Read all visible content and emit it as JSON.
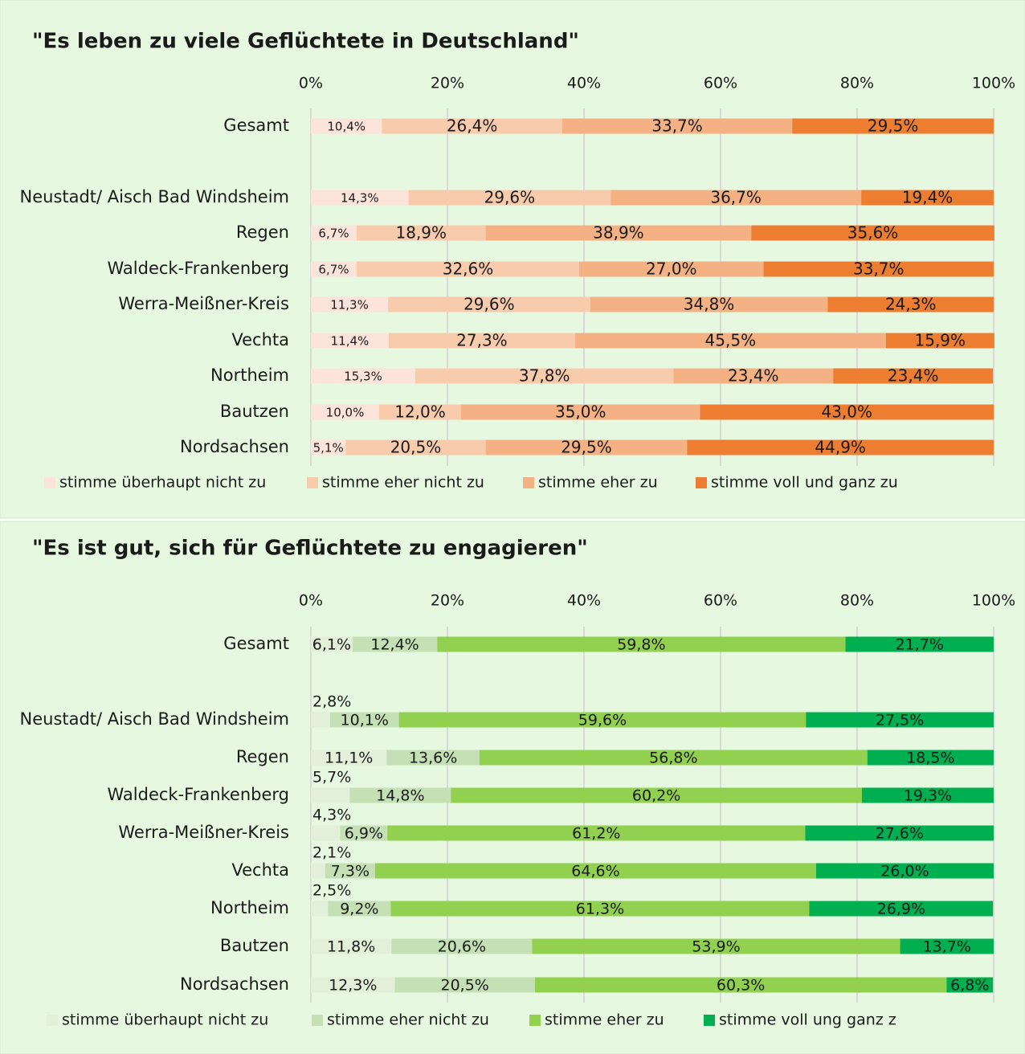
{
  "chart_data": [
    {
      "type": "stacked_bar_horizontal",
      "title": "\"Es leben zu viele Geflüchtete in Deutschland\"",
      "categories": [
        "Gesamt",
        "Neustadt/ Aisch Bad Windsheim",
        "Regen",
        "Waldeck-Frankenberg",
        "Werra-Meißner-Kreis",
        "Vechta",
        "Northeim",
        "Bautzen",
        "Nordsachsen"
      ],
      "xlim": [
        0,
        100
      ],
      "xticks": [
        {
          "value": 0,
          "label": "0%"
        },
        {
          "value": 20,
          "label": "20%"
        },
        {
          "value": 40,
          "label": "40%"
        },
        {
          "value": 60,
          "label": "60%"
        },
        {
          "value": 80,
          "label": "80%"
        },
        {
          "value": 100,
          "label": "100%"
        }
      ],
      "grid": true,
      "legend": "bottom",
      "series": [
        {
          "name": "stimme überhaupt nicht zu",
          "color": "#fce4da",
          "values": [
            10.4,
            14.3,
            6.7,
            6.7,
            11.3,
            11.4,
            15.3,
            10.0,
            5.1
          ],
          "value_labels": [
            "10,4%",
            "14,3%",
            "6,7%",
            "6,7%",
            "11,3%",
            "11,4%",
            "15,3%",
            "10,0%",
            "5,1%"
          ]
        },
        {
          "name": "stimme eher nicht zu",
          "color": "#f8cbad",
          "values": [
            26.4,
            29.6,
            18.9,
            32.6,
            29.6,
            27.3,
            37.8,
            12.0,
            20.5
          ],
          "value_labels": [
            "26,4%",
            "29,6%",
            "18,9%",
            "32,6%",
            "29,6%",
            "27,3%",
            "37,8%",
            "12,0%",
            "20,5%"
          ]
        },
        {
          "name": "stimme eher zu",
          "color": "#f4b183",
          "values": [
            33.7,
            36.7,
            38.9,
            27.0,
            34.8,
            45.5,
            23.4,
            35.0,
            29.5
          ],
          "value_labels": [
            "33,7%",
            "36,7%",
            "38,9%",
            "27,0%",
            "34,8%",
            "45,5%",
            "23,4%",
            "35,0%",
            "29,5%"
          ]
        },
        {
          "name": "stimme voll und ganz zu",
          "color": "#ed7d31",
          "values": [
            29.5,
            19.4,
            35.6,
            33.7,
            24.3,
            15.9,
            23.4,
            43.0,
            44.9
          ],
          "value_labels": [
            "29,5%",
            "19,4%",
            "35,6%",
            "33,7%",
            "24,3%",
            "15,9%",
            "23,4%",
            "43,0%",
            "44,9%"
          ]
        }
      ]
    },
    {
      "type": "stacked_bar_horizontal",
      "title": "\"Es ist gut, sich für Geflüchtete zu engagieren\"",
      "categories": [
        "Gesamt",
        "Neustadt/ Aisch Bad Windsheim",
        "Regen",
        "Waldeck-Frankenberg",
        "Werra-Meißner-Kreis",
        "Vechta",
        "Northeim",
        "Bautzen",
        "Nordsachsen"
      ],
      "xlim": [
        0,
        100
      ],
      "xticks": [
        {
          "value": 0,
          "label": "0%"
        },
        {
          "value": 20,
          "label": "20%"
        },
        {
          "value": 40,
          "label": "40%"
        },
        {
          "value": 60,
          "label": "60%"
        },
        {
          "value": 80,
          "label": "80%"
        },
        {
          "value": 100,
          "label": "100%"
        }
      ],
      "grid": true,
      "legend": "bottom",
      "series": [
        {
          "name": "stimme überhaupt nicht zu",
          "color": "#e2efd9",
          "values": [
            6.1,
            2.8,
            11.1,
            5.7,
            4.3,
            2.1,
            2.5,
            11.8,
            12.3
          ],
          "value_labels": [
            "6,1%",
            "2,8%",
            "11,1%",
            "5,7%",
            "4,3%",
            "2,1%",
            "2,5%",
            "11,8%",
            "12,3%"
          ]
        },
        {
          "name": "stimme eher nicht zu",
          "color": "#c5e0b4",
          "values": [
            12.4,
            10.1,
            13.6,
            14.8,
            6.9,
            7.3,
            9.2,
            20.6,
            20.5
          ],
          "value_labels": [
            "12,4%",
            "10,1%",
            "13,6%",
            "14,8%",
            "6,9%",
            "7,3%",
            "9,2%",
            "20,6%",
            "20,5%"
          ]
        },
        {
          "name": "stimme eher zu",
          "color": "#92d050",
          "values": [
            59.8,
            59.6,
            56.8,
            60.2,
            61.2,
            64.6,
            61.3,
            53.9,
            60.3
          ],
          "value_labels": [
            "59,8%",
            "59,6%",
            "56,8%",
            "60,2%",
            "61,2%",
            "64,6%",
            "61,3%",
            "53,9%",
            "60,3%"
          ]
        },
        {
          "name": "stimme voll ung ganz z",
          "color": "#00b050",
          "values": [
            21.7,
            27.5,
            18.5,
            19.3,
            27.6,
            26.0,
            26.9,
            13.7,
            6.8
          ],
          "value_labels": [
            "21,7%",
            "27,5%",
            "18,5%",
            "19,3%",
            "27,6%",
            "26,0%",
            "26,9%",
            "13,7%",
            "6,8%"
          ]
        }
      ]
    }
  ]
}
